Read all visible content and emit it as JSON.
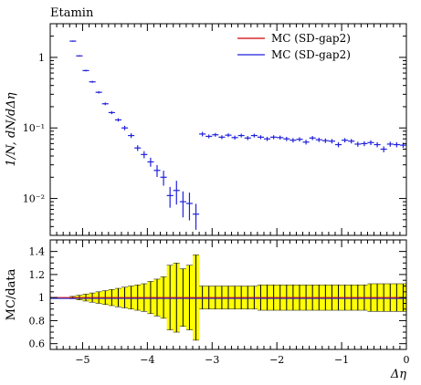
{
  "chart_data": [
    {
      "type": "scatter",
      "title": "Etamin",
      "ylabel": "1/N, dN/dΔη",
      "xlabel": "",
      "yscale": "log",
      "xlim": [
        -5.5,
        0
      ],
      "ylim": [
        0.003,
        3.0
      ],
      "grid": false,
      "legend_position": "top-right",
      "legend": [
        "MC (SD-gap2)",
        "MC (SD-gap2)"
      ],
      "colors": {
        "ref": "#d00000",
        "mc": "#2020dd",
        "band": "#ffff00"
      },
      "xticks": [
        -5,
        -4,
        -3,
        -2,
        -1,
        0
      ],
      "yticks": [
        {
          "value": 1,
          "label": "1"
        },
        {
          "value": 0.1,
          "label": "10⁻¹"
        },
        {
          "value": 0.01,
          "label": "10⁻²"
        }
      ],
      "bin_width": 0.1,
      "series": [
        {
          "name": "MC (SD-gap2)",
          "x": [
            -5.15,
            -5.05,
            -4.95,
            -4.85,
            -4.75,
            -4.65,
            -4.55,
            -4.45,
            -4.35,
            -4.25,
            -4.15,
            -4.05,
            -3.95,
            -3.85,
            -3.75,
            -3.65,
            -3.55,
            -3.45,
            -3.35,
            -3.25,
            -3.15,
            -3.05,
            -2.95,
            -2.85,
            -2.75,
            -2.65,
            -2.55,
            -2.45,
            -2.35,
            -2.25,
            -2.15,
            -2.05,
            -1.95,
            -1.85,
            -1.75,
            -1.65,
            -1.55,
            -1.45,
            -1.35,
            -1.25,
            -1.15,
            -1.05,
            -0.95,
            -0.85,
            -0.75,
            -0.65,
            -0.55,
            -0.45,
            -0.35,
            -0.25,
            -0.15,
            -0.05
          ],
          "y": [
            1.7,
            1.05,
            0.65,
            0.45,
            0.32,
            0.22,
            0.165,
            0.13,
            0.1,
            0.078,
            0.052,
            0.042,
            0.033,
            0.025,
            0.02,
            0.011,
            0.013,
            0.009,
            0.0085,
            0.006,
            0.082,
            0.076,
            0.08,
            0.074,
            0.079,
            0.073,
            0.078,
            0.072,
            0.078,
            0.074,
            0.07,
            0.074,
            0.073,
            0.07,
            0.067,
            0.069,
            0.063,
            0.072,
            0.068,
            0.066,
            0.065,
            0.058,
            0.067,
            0.065,
            0.059,
            0.06,
            0.062,
            0.058,
            0.05,
            0.059,
            0.058,
            0.057
          ],
          "yerr": [
            0.03,
            0.02,
            0.015,
            0.012,
            0.01,
            0.008,
            0.007,
            0.006,
            0.006,
            0.005,
            0.004,
            0.004,
            0.004,
            0.004,
            0.004,
            0.003,
            0.004,
            0.003,
            0.003,
            0.002,
            0.005,
            0.004,
            0.004,
            0.004,
            0.004,
            0.004,
            0.004,
            0.004,
            0.004,
            0.004,
            0.004,
            0.004,
            0.004,
            0.004,
            0.004,
            0.004,
            0.004,
            0.004,
            0.004,
            0.004,
            0.004,
            0.004,
            0.004,
            0.004,
            0.004,
            0.004,
            0.004,
            0.004,
            0.004,
            0.004,
            0.004,
            0.004
          ]
        }
      ]
    },
    {
      "type": "area",
      "ylabel": "MC/data",
      "xlabel": "Δη",
      "xlim": [
        -5.5,
        0
      ],
      "ylim": [
        0.55,
        1.5
      ],
      "xticks": [
        -5,
        -4,
        -3,
        -2,
        -1,
        0
      ],
      "yticks": [
        0.6,
        0.8,
        1,
        1.2,
        1.4
      ],
      "ratio": [
        1,
        1,
        1,
        1,
        1,
        1,
        1,
        1,
        1,
        1,
        1,
        1,
        1,
        1,
        1,
        1,
        1,
        1,
        1,
        1,
        1,
        1,
        1,
        1,
        1,
        1,
        1,
        1,
        1,
        1,
        1,
        1,
        1,
        1,
        1,
        1,
        1,
        1,
        1,
        1,
        1,
        1,
        1,
        1,
        1,
        1,
        1,
        1,
        1,
        1,
        1,
        1
      ],
      "band_halfwidth": [
        0.01,
        0.02,
        0.03,
        0.04,
        0.05,
        0.06,
        0.07,
        0.08,
        0.09,
        0.1,
        0.11,
        0.12,
        0.14,
        0.16,
        0.18,
        0.28,
        0.3,
        0.25,
        0.28,
        0.37,
        0.1,
        0.1,
        0.1,
        0.1,
        0.1,
        0.1,
        0.1,
        0.1,
        0.1,
        0.11,
        0.11,
        0.11,
        0.11,
        0.11,
        0.11,
        0.11,
        0.11,
        0.11,
        0.11,
        0.11,
        0.11,
        0.11,
        0.11,
        0.11,
        0.11,
        0.11,
        0.12,
        0.12,
        0.12,
        0.12,
        0.12,
        0.12
      ]
    }
  ]
}
